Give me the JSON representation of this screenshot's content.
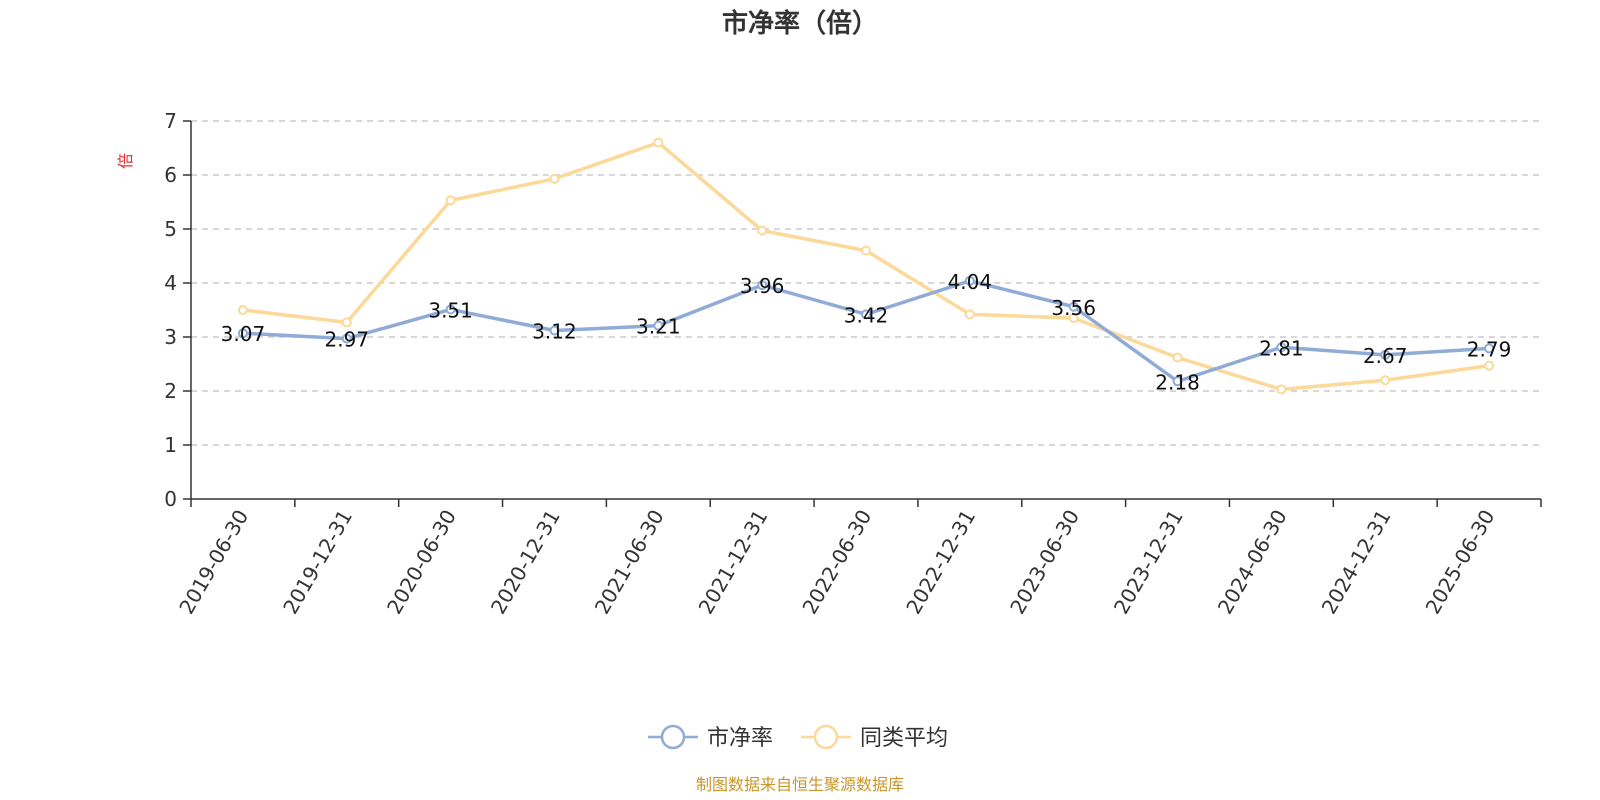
{
  "chart_data": {
    "type": "line",
    "title": "市净率（倍）",
    "ylabel": "倍",
    "ylim": [
      0,
      7
    ],
    "yticks": [
      0,
      1,
      2,
      3,
      4,
      5,
      6,
      7
    ],
    "grid": true,
    "legend_position": "bottom-center",
    "categories": [
      "2019-06-30",
      "2019-12-31",
      "2020-06-30",
      "2020-12-31",
      "2021-06-30",
      "2021-12-31",
      "2022-06-30",
      "2022-12-31",
      "2023-06-30",
      "2023-12-31",
      "2024-06-30",
      "2024-12-31",
      "2025-06-30"
    ],
    "series": [
      {
        "name": "市净率",
        "color": "#8fabd6",
        "values": [
          3.07,
          2.97,
          3.51,
          3.12,
          3.21,
          3.96,
          3.42,
          4.04,
          3.56,
          2.18,
          2.81,
          2.67,
          2.79
        ],
        "labels": [
          "3.07",
          "2.97",
          "3.51",
          "3.12",
          "3.21",
          "3.96",
          "3.42",
          "4.04",
          "3.56",
          "2.18",
          "2.81",
          "2.67",
          "2.79"
        ]
      },
      {
        "name": "同类平均",
        "color": "#fcd899",
        "values": [
          3.5,
          3.27,
          5.53,
          5.93,
          6.6,
          4.97,
          4.6,
          3.42,
          3.35,
          2.62,
          2.03,
          2.2,
          2.47
        ]
      }
    ]
  },
  "source": "制图数据来自恒生聚源数据库"
}
